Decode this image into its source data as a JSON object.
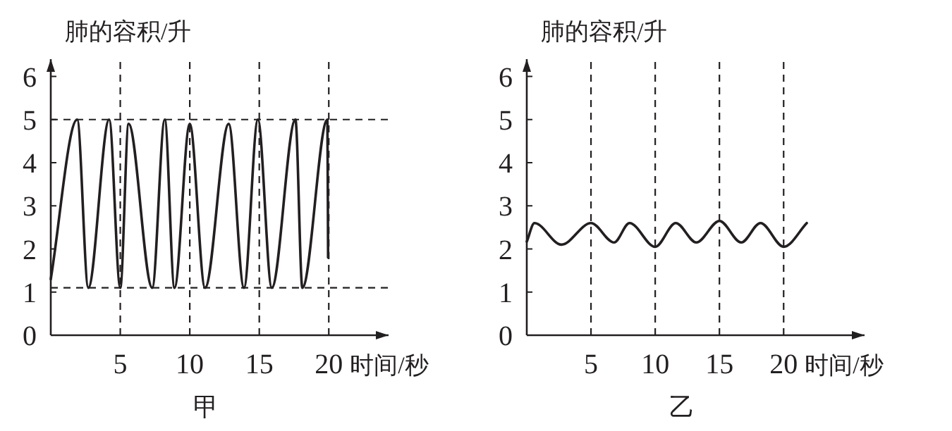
{
  "chart_data": [
    {
      "type": "line",
      "title": "甲",
      "xlabel": "时间/秒",
      "ylabel": "肺的容积/升",
      "xlim": [
        0,
        24.3
      ],
      "ylim": [
        0,
        6.4
      ],
      "xticks": [
        5,
        10,
        15,
        20
      ],
      "yticks": [
        0,
        1,
        2,
        3,
        4,
        5,
        6
      ],
      "grid": false,
      "line_style": "solid",
      "series": [
        {
          "color": "#231f20",
          "x": [
            0,
            1.9,
            2.7,
            4.2,
            5.0,
            5.6,
            7.3,
            8.2,
            8.9,
            10.0,
            11.1,
            12.8,
            13.9,
            14.9,
            15.9,
            17.6,
            18.1,
            19.9,
            19.95
          ],
          "values": [
            1.3,
            5,
            1.1,
            5,
            1.1,
            4.9,
            1.1,
            5,
            1.1,
            4.9,
            1.1,
            4.9,
            1.1,
            5,
            1.1,
            5,
            1.1,
            5,
            1.8
          ]
        }
      ],
      "ref_lines": [
        {
          "axis": "y",
          "value": 5,
          "line_style": "dashed"
        },
        {
          "axis": "y",
          "value": 1.1,
          "line_style": "dashed"
        },
        {
          "axis": "x",
          "value": 5,
          "line_style": "dashed"
        },
        {
          "axis": "x",
          "value": 10,
          "line_style": "dashed"
        },
        {
          "axis": "x",
          "value": 15,
          "line_style": "dashed"
        },
        {
          "axis": "x",
          "value": 20,
          "line_style": "dashed"
        }
      ]
    },
    {
      "type": "line",
      "title": "乙",
      "xlabel": "时间/秒",
      "ylabel": "肺的容积/升",
      "xlim": [
        0,
        26.3
      ],
      "ylim": [
        0,
        6.4
      ],
      "xticks": [
        5,
        10,
        15,
        20
      ],
      "yticks": [
        0,
        1,
        2,
        3,
        4,
        5,
        6
      ],
      "grid": false,
      "line_style": "solid",
      "series": [
        {
          "color": "#231f20",
          "x": [
            0,
            0.6,
            2.7,
            5,
            6.8,
            8.0,
            10,
            11.6,
            13.2,
            15,
            16.7,
            18.2,
            20,
            21.8
          ],
          "values": [
            2.17,
            2.6,
            2.1,
            2.6,
            2.15,
            2.6,
            2.05,
            2.6,
            2.15,
            2.65,
            2.15,
            2.6,
            2.05,
            2.6
          ]
        }
      ],
      "ref_lines": [
        {
          "axis": "x",
          "value": 5,
          "line_style": "dashed"
        },
        {
          "axis": "x",
          "value": 10,
          "line_style": "dashed"
        },
        {
          "axis": "x",
          "value": 15,
          "line_style": "dashed"
        },
        {
          "axis": "x",
          "value": 20,
          "line_style": "dashed"
        }
      ]
    }
  ]
}
